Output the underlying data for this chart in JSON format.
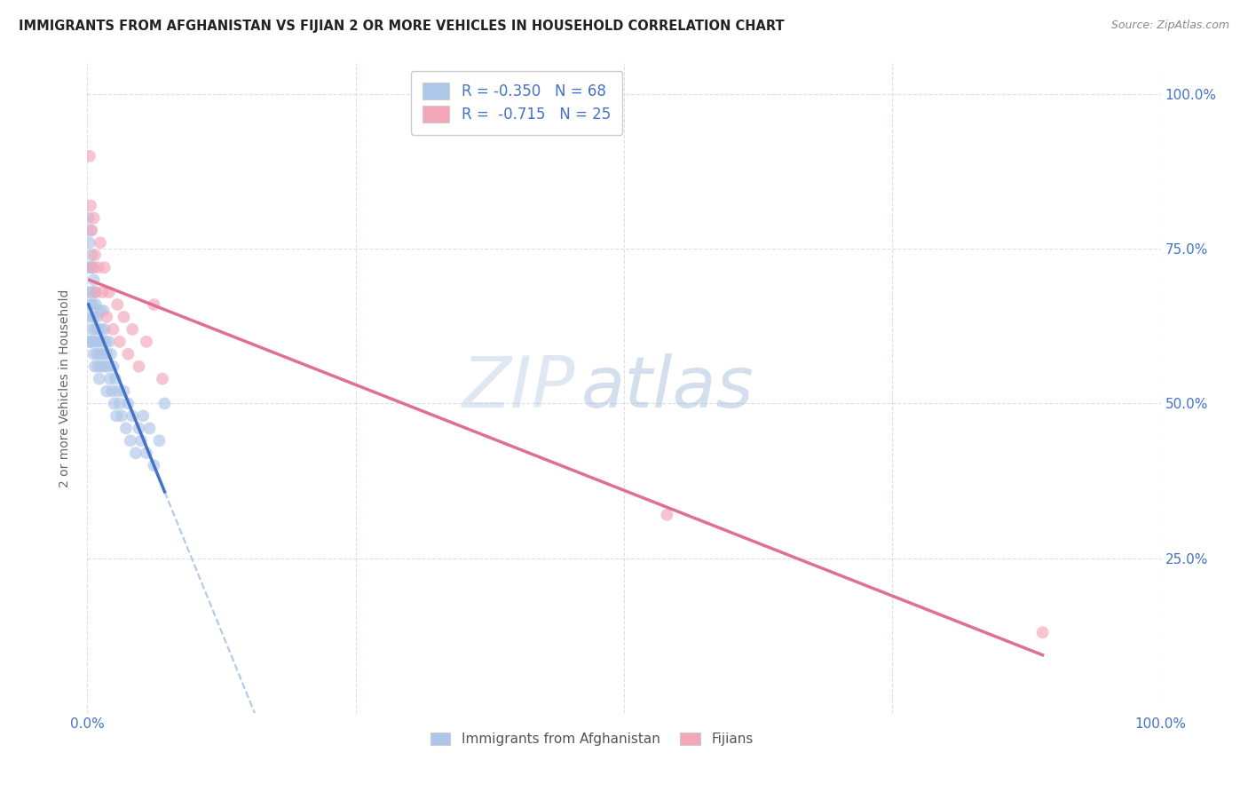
{
  "title": "IMMIGRANTS FROM AFGHANISTAN VS FIJIAN 2 OR MORE VEHICLES IN HOUSEHOLD CORRELATION CHART",
  "source": "Source: ZipAtlas.com",
  "ylabel": "2 or more Vehicles in Household",
  "legend_blue_label": "R = -0.350   N = 68",
  "legend_pink_label": "R =  -0.715   N = 25",
  "legend_blue_color": "#aec6e8",
  "legend_pink_color": "#f4a7b9",
  "blue_dot_color": "#aec6e8",
  "pink_dot_color": "#f4a7b9",
  "blue_line_color": "#4472c4",
  "pink_line_color": "#e07090",
  "dashed_line_color": "#b0c8e8",
  "watermark_zip": "ZIP",
  "watermark_atlas": "atlas",
  "background_color": "#ffffff",
  "scatter_alpha": 0.65,
  "dot_size": 100,
  "afghanistan_x": [
    0.001,
    0.001,
    0.001,
    0.002,
    0.002,
    0.002,
    0.003,
    0.003,
    0.003,
    0.003,
    0.004,
    0.004,
    0.004,
    0.005,
    0.005,
    0.005,
    0.006,
    0.006,
    0.006,
    0.007,
    0.007,
    0.007,
    0.008,
    0.008,
    0.009,
    0.009,
    0.01,
    0.01,
    0.011,
    0.011,
    0.012,
    0.012,
    0.013,
    0.013,
    0.014,
    0.015,
    0.015,
    0.016,
    0.016,
    0.017,
    0.018,
    0.018,
    0.019,
    0.02,
    0.021,
    0.022,
    0.023,
    0.024,
    0.025,
    0.026,
    0.027,
    0.028,
    0.03,
    0.032,
    0.034,
    0.036,
    0.038,
    0.04,
    0.042,
    0.045,
    0.048,
    0.05,
    0.052,
    0.055,
    0.058,
    0.062,
    0.067,
    0.072
  ],
  "afghanistan_y": [
    0.8,
    0.72,
    0.64,
    0.76,
    0.68,
    0.6,
    0.78,
    0.72,
    0.66,
    0.6,
    0.74,
    0.68,
    0.62,
    0.72,
    0.66,
    0.6,
    0.7,
    0.64,
    0.58,
    0.68,
    0.62,
    0.56,
    0.66,
    0.6,
    0.64,
    0.58,
    0.62,
    0.56,
    0.6,
    0.54,
    0.65,
    0.58,
    0.62,
    0.56,
    0.6,
    0.65,
    0.58,
    0.62,
    0.56,
    0.6,
    0.58,
    0.52,
    0.56,
    0.6,
    0.54,
    0.58,
    0.52,
    0.56,
    0.5,
    0.54,
    0.48,
    0.52,
    0.5,
    0.48,
    0.52,
    0.46,
    0.5,
    0.44,
    0.48,
    0.42,
    0.46,
    0.44,
    0.48,
    0.42,
    0.46,
    0.4,
    0.44,
    0.5
  ],
  "fijian_x": [
    0.002,
    0.003,
    0.004,
    0.005,
    0.006,
    0.007,
    0.008,
    0.01,
    0.012,
    0.014,
    0.016,
    0.018,
    0.02,
    0.024,
    0.028,
    0.03,
    0.034,
    0.038,
    0.042,
    0.048,
    0.055,
    0.062,
    0.07,
    0.54,
    0.89
  ],
  "fijian_y": [
    0.9,
    0.82,
    0.78,
    0.72,
    0.8,
    0.74,
    0.68,
    0.72,
    0.76,
    0.68,
    0.72,
    0.64,
    0.68,
    0.62,
    0.66,
    0.6,
    0.64,
    0.58,
    0.62,
    0.56,
    0.6,
    0.66,
    0.54,
    0.32,
    0.13
  ],
  "xlim": [
    0.0,
    1.0
  ],
  "ylim": [
    0.0,
    1.05
  ],
  "ytick_vals": [
    0.0,
    0.25,
    0.5,
    0.75,
    1.0
  ],
  "right_ytick_labels": [
    "",
    "25.0%",
    "50.0%",
    "75.0%",
    "100.0%"
  ],
  "grid_color": "#d0d8e8",
  "grid_alpha": 0.8
}
